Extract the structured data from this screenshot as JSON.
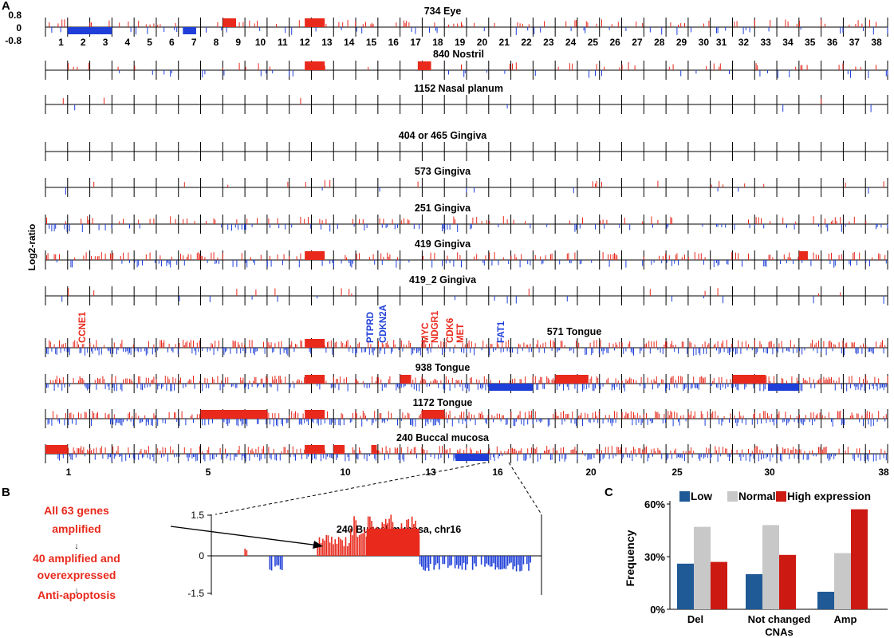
{
  "panel_labels": {
    "a": "A",
    "b": "B",
    "c": "C"
  },
  "colors": {
    "amp": "#e8291c",
    "del": "#1f3fd8",
    "low": "#1f5a96",
    "normal": "#c8c8c8",
    "high": "#cc1a12",
    "text_red": "#e8291c",
    "text_blue": "#1f3fd8"
  },
  "chart_data": [
    {
      "type": "genome_cna_tracks",
      "ylabel": "Log2-ratio",
      "yticks": [
        "0.8",
        "0",
        "-0.8"
      ],
      "chromosomes_top": [
        "1",
        "2",
        "3",
        "4",
        "5",
        "6",
        "7",
        "8",
        "9",
        "10",
        "11",
        "12",
        "13",
        "14",
        "15",
        "16",
        "17",
        "18",
        "19",
        "20",
        "21",
        "22",
        "23",
        "24",
        "25",
        "26",
        "27",
        "28",
        "29",
        "30",
        "31",
        "32",
        "33",
        "34",
        "35",
        "36",
        "37",
        "38"
      ],
      "chromosomes_bottom": [
        "1",
        "5",
        "10",
        "13",
        "16",
        "20",
        "25",
        "30",
        "38"
      ],
      "genes": [
        {
          "name": "CCNE1",
          "color": "red"
        },
        {
          "name": "PTPRD",
          "color": "blue"
        },
        {
          "name": "CDKN2A",
          "color": "blue"
        },
        {
          "name": "MYC",
          "color": "red"
        },
        {
          "name": "NDGR1",
          "color": "red"
        },
        {
          "name": "CDK6",
          "color": "red"
        },
        {
          "name": "MET",
          "color": "red"
        },
        {
          "name": "FAT1",
          "color": "blue"
        }
      ],
      "samples": [
        {
          "title": "734 Eye",
          "density": 0.18,
          "amp_blocks": [
            [
              12.7,
              13.6
            ],
            [
              9,
              9.6
            ]
          ],
          "del_blocks": [
            [
              2,
              4
            ],
            [
              7.2,
              7.8
            ]
          ]
        },
        {
          "title": "840 Nostril",
          "density": 0.1,
          "amp_blocks": [
            [
              12.7,
              13.6
            ],
            [
              17.8,
              18.4
            ]
          ],
          "del_blocks": []
        },
        {
          "title": "1152 Nasal planum",
          "density": 0.01,
          "amp_blocks": [],
          "del_blocks": []
        },
        {
          "title": "404 or 465 Gingiva",
          "density": 0,
          "amp_blocks": [],
          "del_blocks": []
        },
        {
          "title": "573 Gingiva",
          "density": 0.04,
          "amp_blocks": [],
          "del_blocks": []
        },
        {
          "title": "251 Gingiva",
          "density": 0.22,
          "amp_blocks": [],
          "del_blocks": []
        },
        {
          "title": "419 Gingiva",
          "density": 0.35,
          "amp_blocks": [
            [
              12.7,
              13.6
            ],
            [
              35,
              35.4
            ]
          ],
          "del_blocks": []
        },
        {
          "title": "419_2 Gingiva",
          "density": 0.04,
          "amp_blocks": [],
          "del_blocks": []
        },
        {
          "title": "571 Tongue",
          "density": 0.7,
          "amp_blocks": [
            [
              12.7,
              13.6
            ]
          ],
          "del_blocks": []
        },
        {
          "title": "938 Tongue",
          "density": 0.7,
          "amp_blocks": [
            [
              12.7,
              13.6
            ],
            [
              17,
              17.5
            ],
            [
              24,
              25.5
            ],
            [
              32,
              33.5
            ]
          ],
          "del_blocks": [
            [
              21,
              23
            ],
            [
              33.6,
              35
            ]
          ]
        },
        {
          "title": "1172 Tongue",
          "density": 0.7,
          "amp_blocks": [
            [
              8,
              11
            ],
            [
              12.7,
              13.6
            ],
            [
              18,
              19
            ]
          ],
          "del_blocks": []
        },
        {
          "title": "240 Buccal mucosa",
          "density": 0.7,
          "amp_blocks": [
            [
              1,
              2
            ],
            [
              12.7,
              13.6
            ],
            [
              14,
              14.5
            ],
            [
              15.7,
              15.95
            ]
          ],
          "del_blocks": [
            [
              19.5,
              21
            ]
          ]
        }
      ]
    },
    {
      "type": "bar",
      "title": "240 Buccal mucosa, chr16",
      "yticks": [
        "1.5",
        "0",
        "-1.5"
      ],
      "ylim": [
        -1.5,
        1.5
      ],
      "segments": [
        {
          "from": 0.1,
          "to": 0.11,
          "value": 0.3
        },
        {
          "from": 0.17,
          "to": 0.22,
          "value": -0.45
        },
        {
          "from": 0.32,
          "to": 0.42,
          "value": 0.6
        },
        {
          "from": 0.42,
          "to": 0.63,
          "value": 1.2
        },
        {
          "from": 0.63,
          "to": 0.97,
          "value": -0.45
        }
      ]
    },
    {
      "type": "bar",
      "ylabel": "Frequency",
      "xlabel": "CNAs",
      "categories": [
        "Del",
        "Not changed",
        "Amp"
      ],
      "ylim": [
        0,
        60
      ],
      "yticks": [
        "0%",
        "30%",
        "60%"
      ],
      "series": [
        {
          "name": "Low",
          "values": [
            26,
            20,
            10
          ]
        },
        {
          "name": "Normal",
          "values": [
            47,
            48,
            32
          ]
        },
        {
          "name": "High expression",
          "values": [
            27,
            31,
            57
          ]
        }
      ]
    }
  ],
  "flow": {
    "step1_line1": "All 63 genes",
    "step1_line2": "amplified",
    "step2_line1": "40 amplified and",
    "step2_line2": "overexpressed",
    "step3": "Anti-apoptosis",
    "arrow_symbol": "↓"
  }
}
